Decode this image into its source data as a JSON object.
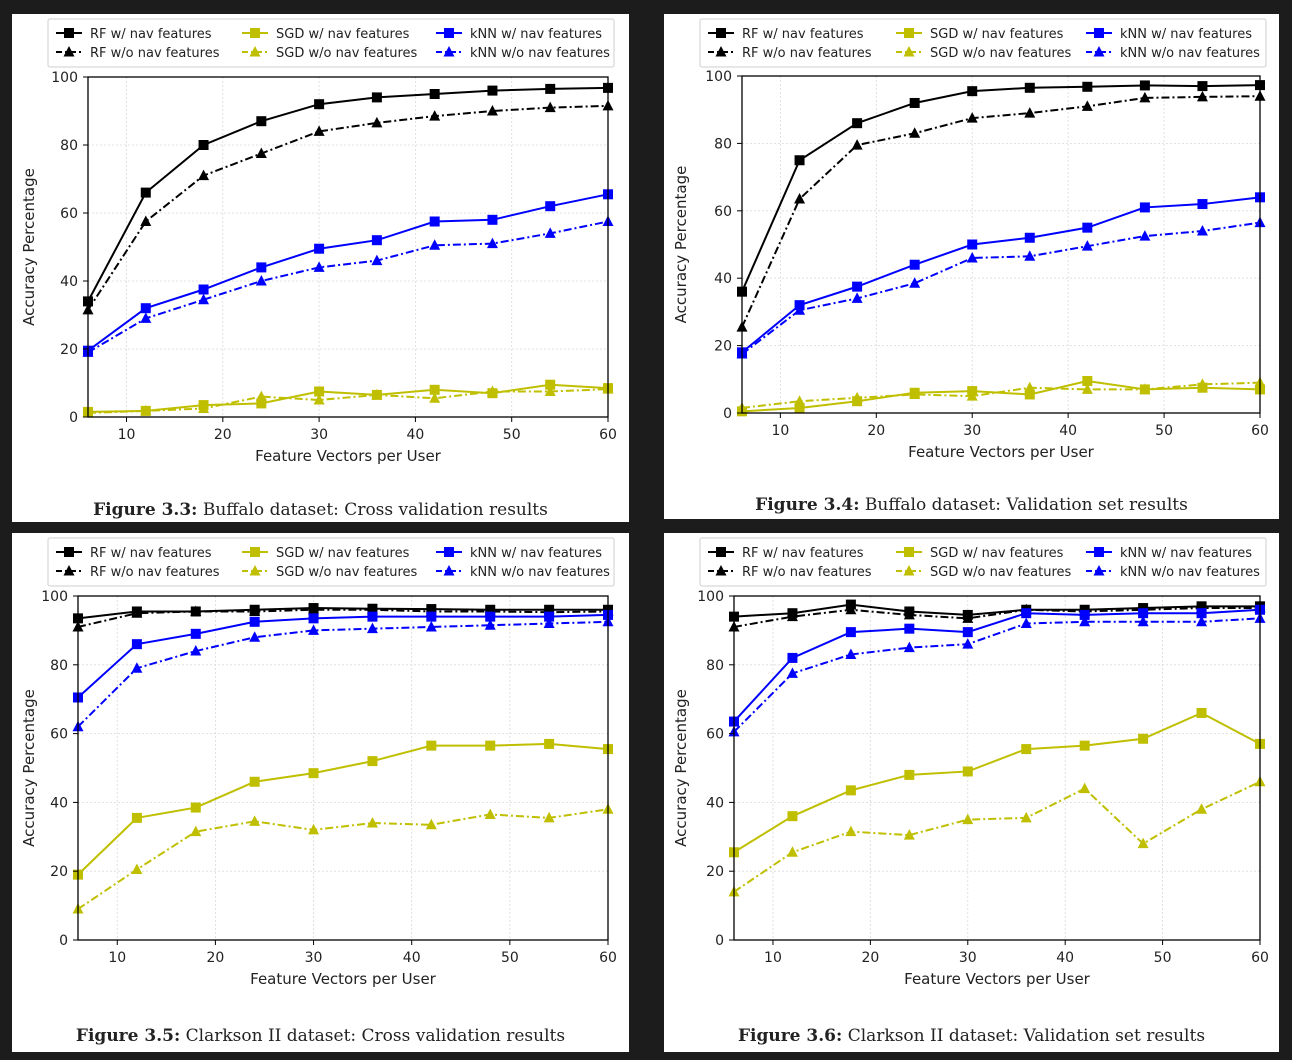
{
  "series_colors": {
    "RF": "#000000",
    "SGD": "#bfbf00",
    "kNN": "#0000ff"
  },
  "legend_labels": [
    "RF w/ nav features",
    "RF w/o nav features",
    "SGD w/ nav features",
    "SGD w/o nav features",
    "kNN w/ nav features",
    "kNN w/o nav features"
  ],
  "captions": [
    {
      "number": "Figure 3.3:",
      "text": "Buffalo dataset: Cross validation results"
    },
    {
      "number": "Figure 3.4:",
      "text": "Buffalo dataset: Validation set results"
    },
    {
      "number": "Figure 3.5:",
      "text": "Clarkson II dataset: Cross validation results"
    },
    {
      "number": "Figure 3.6:",
      "text": "Clarkson II dataset: Validation set results"
    }
  ],
  "chart_data": [
    {
      "type": "line",
      "xlabel": "Feature Vectors per User",
      "ylabel": "Accuracy Percentage",
      "xlim": [
        6,
        60
      ],
      "ylim": [
        0,
        100
      ],
      "xticks": [
        10,
        20,
        30,
        40,
        50,
        60
      ],
      "yticks": [
        0,
        20,
        40,
        60,
        80,
        100
      ],
      "grid": true,
      "legend": "top",
      "x": [
        6,
        12,
        18,
        24,
        30,
        36,
        42,
        48,
        54,
        60
      ],
      "series": [
        {
          "name": "RF w/ nav features",
          "values": [
            34,
            66,
            80,
            87,
            92,
            94,
            95,
            96,
            96.5,
            96.8
          ]
        },
        {
          "name": "RF w/o nav features",
          "values": [
            31.5,
            57.5,
            71,
            77.5,
            84,
            86.5,
            88.5,
            90,
            91,
            91.5
          ]
        },
        {
          "name": "SGD w/ nav features",
          "values": [
            1.5,
            1.8,
            3.5,
            4,
            7.5,
            6.5,
            8,
            7,
            9.5,
            8.5
          ]
        },
        {
          "name": "SGD w/o nav features",
          "values": [
            1.2,
            1.8,
            2.5,
            6,
            5,
            6.5,
            5.5,
            7.5,
            7.5,
            8.2
          ]
        },
        {
          "name": "kNN w/ nav features",
          "values": [
            19.5,
            32,
            37.5,
            44,
            49.5,
            52,
            57.5,
            58,
            62,
            65.5
          ]
        },
        {
          "name": "kNN w/o nav features",
          "values": [
            19,
            29,
            34.5,
            40,
            44,
            46,
            50.5,
            51,
            54,
            57.5
          ]
        }
      ]
    },
    {
      "type": "line",
      "xlabel": "Feature Vectors per User",
      "ylabel": "Accuracy Percentage",
      "xlim": [
        6,
        60
      ],
      "ylim": [
        0,
        100
      ],
      "xticks": [
        10,
        20,
        30,
        40,
        50,
        60
      ],
      "yticks": [
        0,
        20,
        40,
        60,
        80,
        100
      ],
      "grid": true,
      "legend": "top",
      "x": [
        6,
        12,
        18,
        24,
        30,
        36,
        42,
        48,
        54,
        60
      ],
      "series": [
        {
          "name": "RF w/ nav features",
          "values": [
            36,
            75,
            86,
            92,
            95.5,
            96.5,
            96.8,
            97.2,
            97,
            97.3
          ]
        },
        {
          "name": "RF w/o nav features",
          "values": [
            25.5,
            63.5,
            79.5,
            83,
            87.5,
            89,
            91,
            93.5,
            93.8,
            94
          ]
        },
        {
          "name": "SGD w/ nav features",
          "values": [
            0.5,
            1.5,
            3.5,
            6,
            6.5,
            5.5,
            9.5,
            7,
            7.5,
            7
          ]
        },
        {
          "name": "SGD w/o nav features",
          "values": [
            1.5,
            3.5,
            4.5,
            5.5,
            5,
            7.5,
            7,
            7,
            8.5,
            9
          ]
        },
        {
          "name": "kNN w/ nav features",
          "values": [
            18,
            32,
            37.5,
            44,
            50,
            52,
            55,
            61,
            62,
            64
          ]
        },
        {
          "name": "kNN w/o nav features",
          "values": [
            17.5,
            30.5,
            34,
            38.5,
            46,
            46.5,
            49.5,
            52.5,
            54,
            56.5
          ]
        }
      ]
    },
    {
      "type": "line",
      "xlabel": "Feature Vectors per User",
      "ylabel": "Accuracy Percentage",
      "xlim": [
        6,
        60
      ],
      "ylim": [
        0,
        100
      ],
      "xticks": [
        10,
        20,
        30,
        40,
        50,
        60
      ],
      "yticks": [
        0,
        20,
        40,
        60,
        80,
        100
      ],
      "grid": true,
      "legend": "top",
      "x": [
        6,
        12,
        18,
        24,
        30,
        36,
        42,
        48,
        54,
        60
      ],
      "series": [
        {
          "name": "RF w/ nav features",
          "values": [
            93.5,
            95.5,
            95.5,
            96,
            96.5,
            96.3,
            96.2,
            96,
            96,
            96
          ]
        },
        {
          "name": "RF w/o nav features",
          "values": [
            91,
            95,
            95.5,
            95.5,
            96,
            96,
            95.5,
            95.5,
            95.3,
            95.5
          ]
        },
        {
          "name": "SGD w/ nav features",
          "values": [
            19,
            35.5,
            38.5,
            46,
            48.5,
            52,
            56.5,
            56.5,
            57,
            55.5
          ]
        },
        {
          "name": "SGD w/o nav features",
          "values": [
            9,
            20.5,
            31.5,
            34.5,
            32,
            34,
            33.5,
            36.5,
            35.5,
            38
          ]
        },
        {
          "name": "kNN w/ nav features",
          "values": [
            70.5,
            86,
            89,
            92.5,
            93.5,
            94,
            94,
            94,
            94,
            94.5
          ]
        },
        {
          "name": "kNN w/o nav features",
          "values": [
            62,
            79,
            84,
            88,
            90,
            90.5,
            91,
            91.5,
            92,
            92.5
          ]
        }
      ]
    },
    {
      "type": "line",
      "xlabel": "Feature Vectors per User",
      "ylabel": "Accuracy Percentage",
      "xlim": [
        6,
        60
      ],
      "ylim": [
        0,
        100
      ],
      "xticks": [
        10,
        20,
        30,
        40,
        50,
        60
      ],
      "yticks": [
        0,
        20,
        40,
        60,
        80,
        100
      ],
      "grid": true,
      "legend": "top",
      "x": [
        6,
        12,
        18,
        24,
        30,
        36,
        42,
        48,
        54,
        60
      ],
      "series": [
        {
          "name": "RF w/ nav features",
          "values": [
            94,
            95,
            97.5,
            95.5,
            94.5,
            96,
            96,
            96.5,
            97,
            97
          ]
        },
        {
          "name": "RF w/o nav features",
          "values": [
            91,
            94,
            96,
            94.5,
            93.5,
            96,
            95.5,
            96,
            96.5,
            96.5
          ]
        },
        {
          "name": "SGD w/ nav features",
          "values": [
            25.5,
            36,
            43.5,
            48,
            49,
            55.5,
            56.5,
            58.5,
            66,
            57
          ]
        },
        {
          "name": "SGD w/o nav features",
          "values": [
            14,
            25.5,
            31.5,
            30.5,
            35,
            35.5,
            44,
            28,
            38,
            46
          ]
        },
        {
          "name": "kNN w/ nav features",
          "values": [
            63.5,
            82,
            89.5,
            90.5,
            89.5,
            95,
            94.5,
            95,
            95,
            96
          ]
        },
        {
          "name": "kNN w/o nav features",
          "values": [
            60.5,
            77.5,
            83,
            85,
            86,
            92,
            92.5,
            92.5,
            92.5,
            93.5
          ]
        }
      ]
    }
  ]
}
